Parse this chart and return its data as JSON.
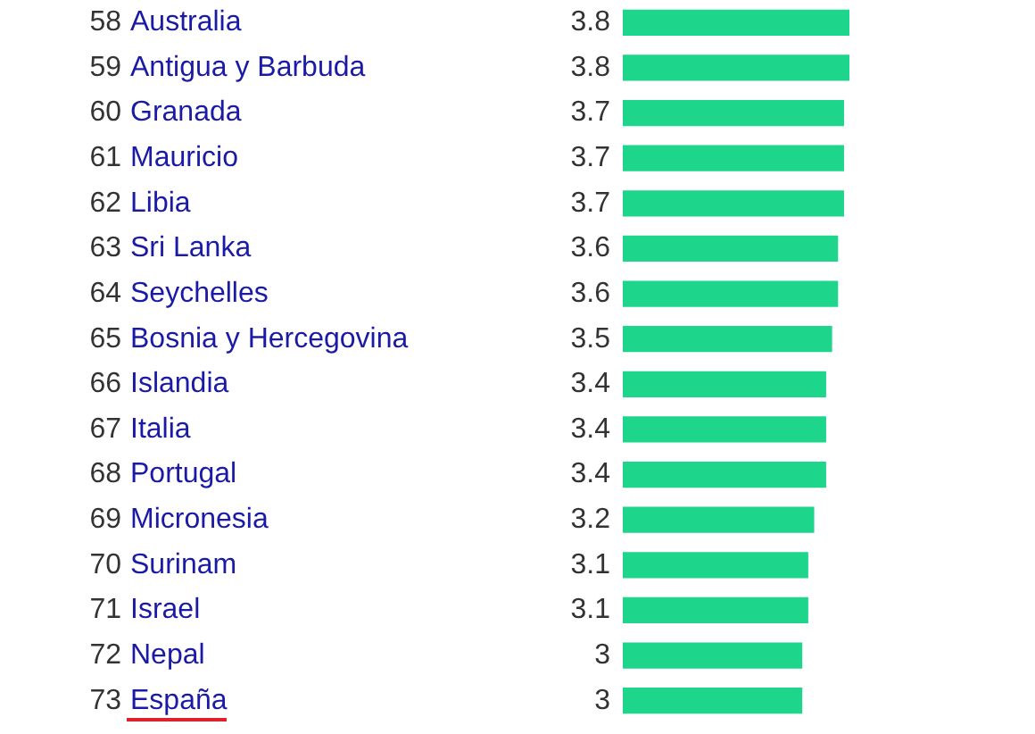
{
  "chart_data": {
    "type": "bar",
    "orientation": "horizontal",
    "data_labels": true,
    "legend": false,
    "categories": [
      "58 Australia",
      "59 Antigua y Barbuda",
      "60 Granada",
      "61 Mauricio",
      "62 Libia",
      "63 Sri Lanka",
      "64 Seychelles",
      "65 Bosnia y Hercegovina",
      "66 Islandia",
      "67 Italia",
      "68 Portugal",
      "69 Micronesia",
      "70 Surinam",
      "71 Israel",
      "72 Nepal",
      "73 España"
    ],
    "values": [
      3.8,
      3.8,
      3.7,
      3.7,
      3.7,
      3.6,
      3.6,
      3.5,
      3.4,
      3.4,
      3.4,
      3.2,
      3.1,
      3.1,
      3,
      3
    ],
    "color": "#1dd68b"
  }
}
